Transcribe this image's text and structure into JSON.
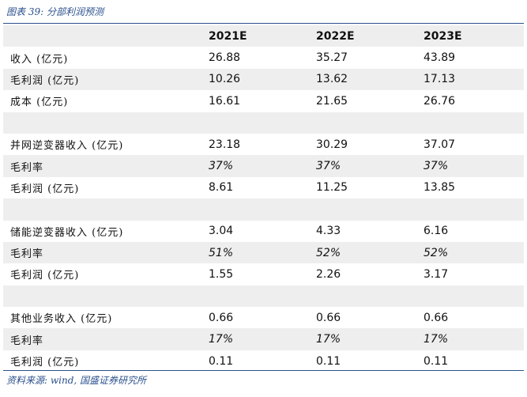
{
  "title": "图表 39:  分部利润预测",
  "source": "资料来源: wind, 国盛证券研究所",
  "headers": [
    "",
    "2021E",
    "2022E",
    "2023E"
  ],
  "rows": [
    {
      "label": "收入 (亿元)",
      "v": [
        "26.88",
        "35.27",
        "43.89"
      ]
    },
    {
      "label": "毛利润 (亿元)",
      "v": [
        "10.26",
        "13.62",
        "17.13"
      ]
    },
    {
      "label": "成本 (亿元)",
      "v": [
        "16.61",
        "21.65",
        "26.76"
      ]
    },
    {
      "label": "",
      "v": [
        "",
        "",
        ""
      ]
    },
    {
      "label": "并网逆变器收入 (亿元)",
      "v": [
        "23.18",
        "30.29",
        "37.07"
      ]
    },
    {
      "label": "毛利率",
      "v": [
        "37%",
        "37%",
        "37%"
      ]
    },
    {
      "label": "毛利润 (亿元)",
      "v": [
        "8.61",
        "11.25",
        "13.85"
      ]
    },
    {
      "label": "",
      "v": [
        "",
        "",
        ""
      ]
    },
    {
      "label": "储能逆变器收入 (亿元)",
      "v": [
        "3.04",
        "4.33",
        "6.16"
      ]
    },
    {
      "label": "毛利率",
      "v": [
        "51%",
        "52%",
        "52%"
      ]
    },
    {
      "label": "毛利润 (亿元)",
      "v": [
        "1.55",
        "2.26",
        "3.17"
      ]
    },
    {
      "label": "",
      "v": [
        "",
        "",
        ""
      ]
    },
    {
      "label": "其他业务收入 (亿元)",
      "v": [
        "0.66",
        "0.66",
        "0.66"
      ]
    },
    {
      "label": "毛利率",
      "v": [
        "17%",
        "17%",
        "17%"
      ]
    },
    {
      "label": "毛利润 (亿元)",
      "v": [
        "0.11",
        "0.11",
        "0.11"
      ]
    }
  ]
}
